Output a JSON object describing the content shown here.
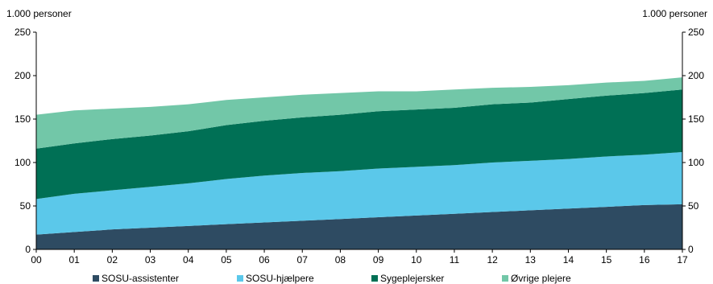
{
  "chart_data": {
    "type": "area",
    "stacked": true,
    "y_unit_left": "1.000 personer",
    "y_unit_right": "1.000 personer",
    "ylim": [
      0,
      250
    ],
    "y_ticks": [
      0,
      50,
      100,
      150,
      200,
      250
    ],
    "categories": [
      "00",
      "01",
      "02",
      "03",
      "04",
      "05",
      "06",
      "07",
      "08",
      "09",
      "10",
      "11",
      "12",
      "13",
      "14",
      "15",
      "16",
      "17"
    ],
    "legend_position": "bottom",
    "grid": false,
    "series": [
      {
        "name": "SOSU-assistenter",
        "color": "#2e4b62",
        "values": [
          17,
          20,
          23,
          25,
          27,
          29,
          31,
          33,
          35,
          37,
          39,
          41,
          43,
          45,
          47,
          49,
          51,
          52
        ]
      },
      {
        "name": "SOSU-hjælpere",
        "color": "#5bc8ea",
        "values": [
          41,
          44,
          45,
          47,
          49,
          52,
          54,
          55,
          55,
          56,
          56,
          56,
          57,
          57,
          57,
          58,
          58,
          60
        ]
      },
      {
        "name": "Sygeplejersker",
        "color": "#007055",
        "values": [
          58,
          58,
          59,
          59,
          60,
          62,
          63,
          64,
          65,
          66,
          66,
          66,
          67,
          67,
          69,
          70,
          71,
          72
        ]
      },
      {
        "name": "Øvrige plejere",
        "color": "#72c7a8",
        "values": [
          39,
          38,
          35,
          33,
          31,
          29,
          27,
          26,
          25,
          23,
          21,
          21,
          19,
          18,
          16,
          15,
          14,
          14
        ]
      }
    ]
  }
}
